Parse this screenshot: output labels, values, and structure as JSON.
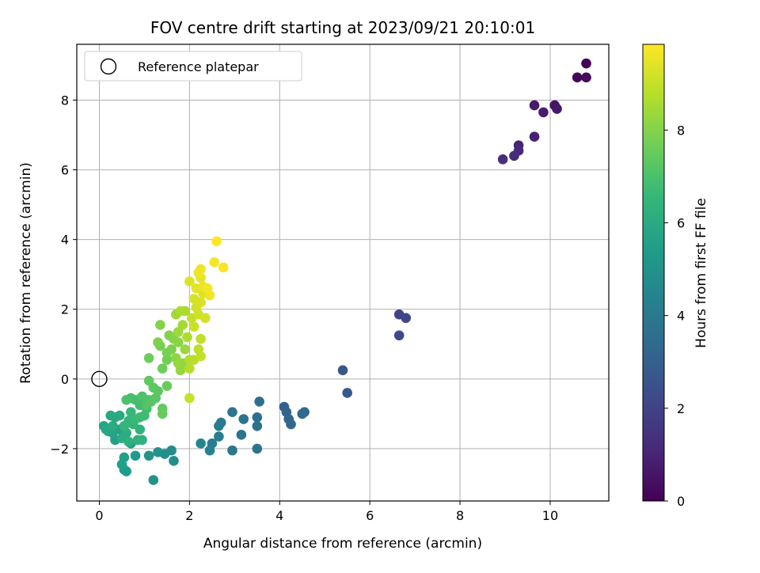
{
  "chart_data": {
    "type": "scatter",
    "title": "FOV centre drift starting at 2023/09/21 20:10:01",
    "xlabel": "Angular distance from reference (arcmin)",
    "ylabel": "Rotation from reference (arcmin)",
    "xlim": [
      -0.5,
      11.3
    ],
    "ylim": [
      -3.5,
      9.6
    ],
    "xticks": [
      0,
      2,
      4,
      6,
      8,
      10
    ],
    "yticks": [
      -2,
      0,
      2,
      4,
      6,
      8
    ],
    "grid": true,
    "legend": {
      "placement": "top-left",
      "entries": [
        {
          "label": "Reference platepar",
          "marker": "open-circle",
          "x": 0,
          "y": 0
        }
      ]
    },
    "colorbar": {
      "label": "Hours from first FF file",
      "colormap": "viridis",
      "range": [
        0,
        9.85
      ],
      "ticks": [
        0,
        2,
        4,
        6,
        8
      ]
    },
    "colormap_stops": [
      "#440154",
      "#482878",
      "#3e4989",
      "#31688e",
      "#26828e",
      "#1f9e89",
      "#35b779",
      "#6ece58",
      "#b5de2b",
      "#fde725"
    ],
    "points": [
      {
        "x": 10.8,
        "y": 9.05,
        "c": 0.05
      },
      {
        "x": 10.6,
        "y": 8.65,
        "c": 0.15
      },
      {
        "x": 10.8,
        "y": 8.65,
        "c": 0.25
      },
      {
        "x": 10.1,
        "y": 7.85,
        "c": 0.5
      },
      {
        "x": 10.15,
        "y": 7.75,
        "c": 0.6
      },
      {
        "x": 9.65,
        "y": 7.85,
        "c": 0.7
      },
      {
        "x": 9.85,
        "y": 7.65,
        "c": 0.75
      },
      {
        "x": 9.65,
        "y": 6.95,
        "c": 0.9
      },
      {
        "x": 9.3,
        "y": 6.7,
        "c": 1.0
      },
      {
        "x": 9.3,
        "y": 6.55,
        "c": 1.1
      },
      {
        "x": 9.2,
        "y": 6.4,
        "c": 1.2
      },
      {
        "x": 8.95,
        "y": 6.3,
        "c": 1.3
      },
      {
        "x": 6.65,
        "y": 1.85,
        "c": 2.0
      },
      {
        "x": 6.8,
        "y": 1.75,
        "c": 2.1
      },
      {
        "x": 6.65,
        "y": 1.25,
        "c": 2.2
      },
      {
        "x": 5.4,
        "y": 0.25,
        "c": 2.7
      },
      {
        "x": 5.5,
        "y": -0.4,
        "c": 2.8
      },
      {
        "x": 4.1,
        "y": -0.8,
        "c": 3.0
      },
      {
        "x": 4.15,
        "y": -0.95,
        "c": 3.1
      },
      {
        "x": 4.2,
        "y": -1.15,
        "c": 3.15
      },
      {
        "x": 4.25,
        "y": -1.3,
        "c": 3.2
      },
      {
        "x": 4.5,
        "y": -1.0,
        "c": 3.3
      },
      {
        "x": 4.55,
        "y": -0.95,
        "c": 3.35
      },
      {
        "x": 3.55,
        "y": -0.65,
        "c": 3.5
      },
      {
        "x": 3.5,
        "y": -1.1,
        "c": 3.6
      },
      {
        "x": 3.5,
        "y": -1.35,
        "c": 3.65
      },
      {
        "x": 3.5,
        "y": -2.0,
        "c": 3.7
      },
      {
        "x": 3.2,
        "y": -1.15,
        "c": 3.75
      },
      {
        "x": 3.15,
        "y": -1.6,
        "c": 3.8
      },
      {
        "x": 2.95,
        "y": -0.95,
        "c": 3.85
      },
      {
        "x": 2.95,
        "y": -2.05,
        "c": 3.9
      },
      {
        "x": 2.7,
        "y": -1.25,
        "c": 4.0
      },
      {
        "x": 2.65,
        "y": -1.35,
        "c": 4.1
      },
      {
        "x": 2.65,
        "y": -1.65,
        "c": 4.15
      },
      {
        "x": 2.5,
        "y": -1.85,
        "c": 4.2
      },
      {
        "x": 2.45,
        "y": -2.05,
        "c": 4.3
      },
      {
        "x": 2.25,
        "y": -1.85,
        "c": 4.5
      },
      {
        "x": 1.65,
        "y": -2.35,
        "c": 4.8
      },
      {
        "x": 1.6,
        "y": -2.05,
        "c": 4.85
      },
      {
        "x": 1.45,
        "y": -2.15,
        "c": 4.9
      },
      {
        "x": 1.3,
        "y": -2.1,
        "c": 5.0
      },
      {
        "x": 1.2,
        "y": -2.9,
        "c": 5.05
      },
      {
        "x": 1.1,
        "y": -2.2,
        "c": 5.1
      },
      {
        "x": 0.8,
        "y": -2.2,
        "c": 5.3
      },
      {
        "x": 0.7,
        "y": -1.85,
        "c": 5.35
      },
      {
        "x": 0.6,
        "y": -2.65,
        "c": 5.4
      },
      {
        "x": 0.55,
        "y": -2.6,
        "c": 5.45
      },
      {
        "x": 0.5,
        "y": -2.45,
        "c": 5.5
      },
      {
        "x": 0.55,
        "y": -2.25,
        "c": 5.55
      },
      {
        "x": 0.35,
        "y": -1.75,
        "c": 5.6
      },
      {
        "x": 0.45,
        "y": -1.45,
        "c": 5.65
      },
      {
        "x": 0.3,
        "y": -1.55,
        "c": 5.7
      },
      {
        "x": 0.2,
        "y": -1.5,
        "c": 5.75
      },
      {
        "x": 0.1,
        "y": -1.35,
        "c": 5.8
      },
      {
        "x": 0.15,
        "y": -1.45,
        "c": 5.85
      },
      {
        "x": 0.25,
        "y": -1.05,
        "c": 5.9
      },
      {
        "x": 0.35,
        "y": -1.1,
        "c": 5.95
      },
      {
        "x": 0.45,
        "y": -1.05,
        "c": 6.0
      },
      {
        "x": 0.3,
        "y": -1.35,
        "c": 6.05
      },
      {
        "x": 0.5,
        "y": -1.7,
        "c": 6.1
      },
      {
        "x": 0.6,
        "y": -1.55,
        "c": 6.15
      },
      {
        "x": 0.65,
        "y": -1.8,
        "c": 6.2
      },
      {
        "x": 0.85,
        "y": -1.75,
        "c": 6.25
      },
      {
        "x": 0.95,
        "y": -1.75,
        "c": 6.3
      },
      {
        "x": 0.9,
        "y": -1.45,
        "c": 6.35
      },
      {
        "x": 0.75,
        "y": -1.3,
        "c": 6.4
      },
      {
        "x": 0.65,
        "y": -1.2,
        "c": 6.45
      },
      {
        "x": 0.55,
        "y": -1.35,
        "c": 6.5
      },
      {
        "x": 0.7,
        "y": -0.95,
        "c": 6.6
      },
      {
        "x": 0.8,
        "y": -1.15,
        "c": 6.65
      },
      {
        "x": 0.9,
        "y": -1.1,
        "c": 6.7
      },
      {
        "x": 1.0,
        "y": -1.05,
        "c": 6.75
      },
      {
        "x": 1.05,
        "y": -0.85,
        "c": 6.8
      },
      {
        "x": 0.9,
        "y": -0.75,
        "c": 6.85
      },
      {
        "x": 0.8,
        "y": -0.6,
        "c": 6.9
      },
      {
        "x": 0.7,
        "y": -0.55,
        "c": 6.95
      },
      {
        "x": 0.6,
        "y": -0.6,
        "c": 7.0
      },
      {
        "x": 0.95,
        "y": -0.5,
        "c": 7.05
      },
      {
        "x": 1.1,
        "y": -0.6,
        "c": 7.1
      },
      {
        "x": 1.05,
        "y": -0.75,
        "c": 7.15
      },
      {
        "x": 1.15,
        "y": -0.65,
        "c": 7.2
      },
      {
        "x": 1.25,
        "y": -0.55,
        "c": 7.25
      },
      {
        "x": 1.3,
        "y": -0.35,
        "c": 7.3
      },
      {
        "x": 1.2,
        "y": -0.25,
        "c": 7.35
      },
      {
        "x": 1.1,
        "y": -0.05,
        "c": 7.4
      },
      {
        "x": 1.4,
        "y": -0.85,
        "c": 7.45
      },
      {
        "x": 1.4,
        "y": -1.0,
        "c": 7.5
      },
      {
        "x": 1.5,
        "y": -0.2,
        "c": 7.55
      },
      {
        "x": 1.1,
        "y": 0.6,
        "c": 7.6
      },
      {
        "x": 1.4,
        "y": 0.3,
        "c": 7.65
      },
      {
        "x": 1.5,
        "y": 0.55,
        "c": 7.7
      },
      {
        "x": 1.35,
        "y": 0.95,
        "c": 7.75
      },
      {
        "x": 1.5,
        "y": 0.75,
        "c": 7.8
      },
      {
        "x": 1.6,
        "y": 0.85,
        "c": 7.85
      },
      {
        "x": 1.3,
        "y": 1.05,
        "c": 7.9
      },
      {
        "x": 1.55,
        "y": 1.25,
        "c": 7.95
      },
      {
        "x": 1.35,
        "y": 1.55,
        "c": 8.0
      },
      {
        "x": 1.65,
        "y": 1.15,
        "c": 8.05
      },
      {
        "x": 1.75,
        "y": 1.05,
        "c": 8.1
      },
      {
        "x": 1.7,
        "y": 0.6,
        "c": 8.15
      },
      {
        "x": 1.85,
        "y": 0.45,
        "c": 8.2
      },
      {
        "x": 1.8,
        "y": 0.25,
        "c": 8.25
      },
      {
        "x": 1.75,
        "y": 0.45,
        "c": 8.3
      },
      {
        "x": 1.9,
        "y": 0.85,
        "c": 8.35
      },
      {
        "x": 1.75,
        "y": 1.35,
        "c": 8.4
      },
      {
        "x": 1.7,
        "y": 1.85,
        "c": 8.45
      },
      {
        "x": 1.85,
        "y": 1.55,
        "c": 8.5
      },
      {
        "x": 1.9,
        "y": 1.95,
        "c": 8.55
      },
      {
        "x": 1.8,
        "y": 1.95,
        "c": 8.6
      },
      {
        "x": 1.95,
        "y": 1.2,
        "c": 8.65
      },
      {
        "x": 2.0,
        "y": 0.55,
        "c": 8.7
      },
      {
        "x": 2.0,
        "y": 0.3,
        "c": 8.75
      },
      {
        "x": 2.1,
        "y": 0.55,
        "c": 8.8
      },
      {
        "x": 2.2,
        "y": 0.85,
        "c": 8.85
      },
      {
        "x": 2.25,
        "y": 1.15,
        "c": 8.9
      },
      {
        "x": 2.25,
        "y": 0.65,
        "c": 8.95
      },
      {
        "x": 2.0,
        "y": -0.55,
        "c": 9.0
      },
      {
        "x": 2.05,
        "y": 1.75,
        "c": 9.0
      },
      {
        "x": 2.1,
        "y": 1.5,
        "c": 9.05
      },
      {
        "x": 2.15,
        "y": 2.05,
        "c": 9.1
      },
      {
        "x": 2.2,
        "y": 1.85,
        "c": 9.15
      },
      {
        "x": 2.35,
        "y": 1.75,
        "c": 9.2
      },
      {
        "x": 2.1,
        "y": 2.3,
        "c": 9.25
      },
      {
        "x": 2.25,
        "y": 2.2,
        "c": 9.3
      },
      {
        "x": 2.3,
        "y": 2.45,
        "c": 9.35
      },
      {
        "x": 2.0,
        "y": 2.8,
        "c": 9.4
      },
      {
        "x": 2.15,
        "y": 2.6,
        "c": 9.45
      },
      {
        "x": 2.25,
        "y": 2.9,
        "c": 9.5
      },
      {
        "x": 2.3,
        "y": 2.65,
        "c": 9.55
      },
      {
        "x": 2.2,
        "y": 3.05,
        "c": 9.6
      },
      {
        "x": 2.25,
        "y": 3.15,
        "c": 9.62
      },
      {
        "x": 2.45,
        "y": 2.4,
        "c": 9.65
      },
      {
        "x": 2.4,
        "y": 2.6,
        "c": 9.7
      },
      {
        "x": 2.55,
        "y": 3.35,
        "c": 9.75
      },
      {
        "x": 2.75,
        "y": 3.2,
        "c": 9.78
      },
      {
        "x": 2.6,
        "y": 3.95,
        "c": 9.85
      }
    ]
  }
}
